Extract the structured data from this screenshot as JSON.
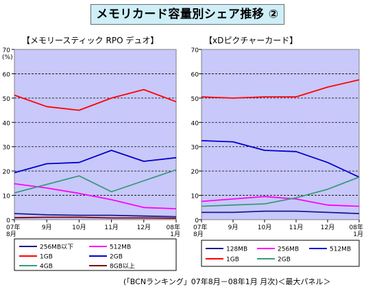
{
  "title": "メモリカード容量別シェア推移 ②",
  "source": "(「BCNランキング」07年8月－08年1月 月次)＜最大パネル＞",
  "colors": {
    "plot_bg": "#c8c8fa"
  },
  "chart_data": [
    {
      "type": "line",
      "title": "【メモリースティック RPO デュオ】",
      "ylabel": "(%)",
      "ylim": [
        0,
        70
      ],
      "yticks": [
        0,
        10,
        20,
        30,
        40,
        50,
        60,
        70
      ],
      "grid": true,
      "categories": [
        "07年\n8月",
        "9月",
        "10月",
        "11月",
        "12月",
        "08年\n1月"
      ],
      "legend_position": "bottom",
      "series": [
        {
          "name": "256MB以下",
          "color": "#1a1a8c",
          "values": [
            2.5,
            2.0,
            1.8,
            1.8,
            1.5,
            1.2
          ]
        },
        {
          "name": "512MB",
          "color": "#ff00ff",
          "values": [
            14.8,
            13.0,
            10.8,
            8.2,
            5.0,
            4.5
          ]
        },
        {
          "name": "1GB",
          "color": "#ff0000",
          "values": [
            51.2,
            46.5,
            45.0,
            50.0,
            53.5,
            48.5
          ]
        },
        {
          "name": "2GB",
          "color": "#0000cc",
          "values": [
            19.3,
            23.0,
            23.5,
            28.5,
            24.0,
            25.5
          ]
        },
        {
          "name": "4GB",
          "color": "#3a9a7a",
          "values": [
            11.0,
            14.5,
            18.0,
            11.5,
            16.0,
            20.5
          ]
        },
        {
          "name": "8GB以上",
          "color": "#800000",
          "values": [
            0.8,
            1.0,
            1.0,
            0.7,
            0.7,
            0.6
          ]
        }
      ]
    },
    {
      "type": "line",
      "title": "【xDピクチャーカード】",
      "ylabel": "",
      "ylim": [
        0,
        70
      ],
      "yticks": [
        0,
        10,
        20,
        30,
        40,
        50,
        60,
        70
      ],
      "grid": true,
      "categories": [
        "07年\n8月",
        "9月",
        "10月",
        "11月",
        "12月",
        "08年\n1月"
      ],
      "legend_position": "bottom",
      "series": [
        {
          "name": "128MB",
          "color": "#1a1a8c",
          "values": [
            3.0,
            3.0,
            3.5,
            3.5,
            3.0,
            2.5
          ]
        },
        {
          "name": "256MB",
          "color": "#ff00ff",
          "values": [
            7.5,
            8.5,
            9.5,
            8.5,
            6.0,
            5.5
          ]
        },
        {
          "name": "512MB",
          "color": "#0000cc",
          "values": [
            32.5,
            32.0,
            28.5,
            28.0,
            23.5,
            17.5
          ]
        },
        {
          "name": "1GB",
          "color": "#ff0000",
          "values": [
            50.5,
            50.0,
            50.5,
            50.5,
            54.5,
            57.5
          ]
        },
        {
          "name": "2GB",
          "color": "#3a9a7a",
          "values": [
            5.5,
            6.0,
            6.5,
            9.0,
            12.5,
            17.5
          ]
        }
      ]
    }
  ]
}
